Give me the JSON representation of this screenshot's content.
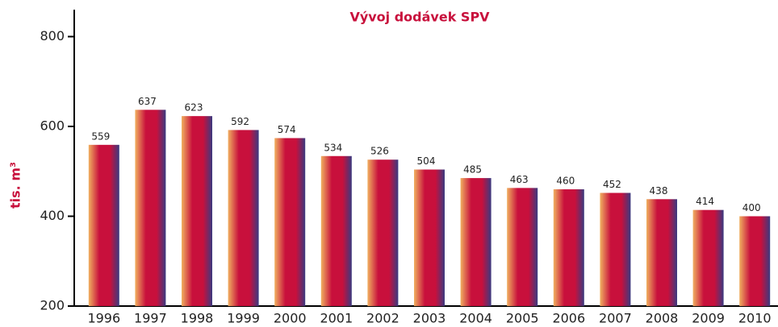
{
  "chart_data": {
    "type": "bar",
    "title": "Vývoj dodávek SPV",
    "y_label": "tis. m³",
    "categories": [
      "1996",
      "1997",
      "1998",
      "1999",
      "2000",
      "2001",
      "2002",
      "2003",
      "2004",
      "2005",
      "2006",
      "2007",
      "2008",
      "2009",
      "2010"
    ],
    "values": [
      559,
      637,
      623,
      592,
      574,
      534,
      526,
      504,
      485,
      463,
      460,
      452,
      438,
      414,
      400
    ],
    "color": "#c8103c",
    "ylim": [
      200,
      860
    ],
    "yticks": [
      200,
      400,
      600,
      800
    ],
    "grid": false
  }
}
